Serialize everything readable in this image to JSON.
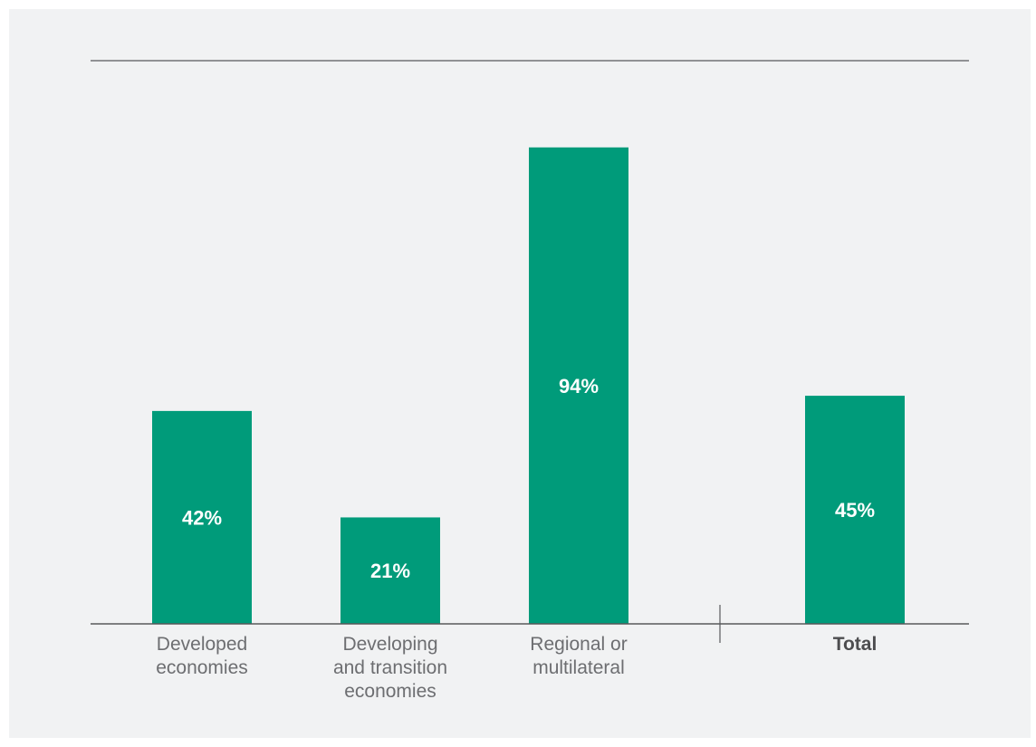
{
  "colors": {
    "bar": "#009b7a",
    "axis": "#58595b",
    "background": "#f1f2f3",
    "label_text": "#6d6e71",
    "value_text": "#ffffff"
  },
  "chart_data": {
    "type": "bar",
    "title": "",
    "xlabel": "",
    "ylabel": "",
    "ylim": [
      0,
      100
    ],
    "grid": false,
    "categories": [
      "Developed\neconomies",
      "Developing\nand transition\neconomies",
      "Regional or\nmultilateral",
      "Total"
    ],
    "values": [
      42,
      21,
      94,
      45
    ],
    "data_labels": [
      "42%",
      "21%",
      "94%",
      "45%"
    ]
  }
}
